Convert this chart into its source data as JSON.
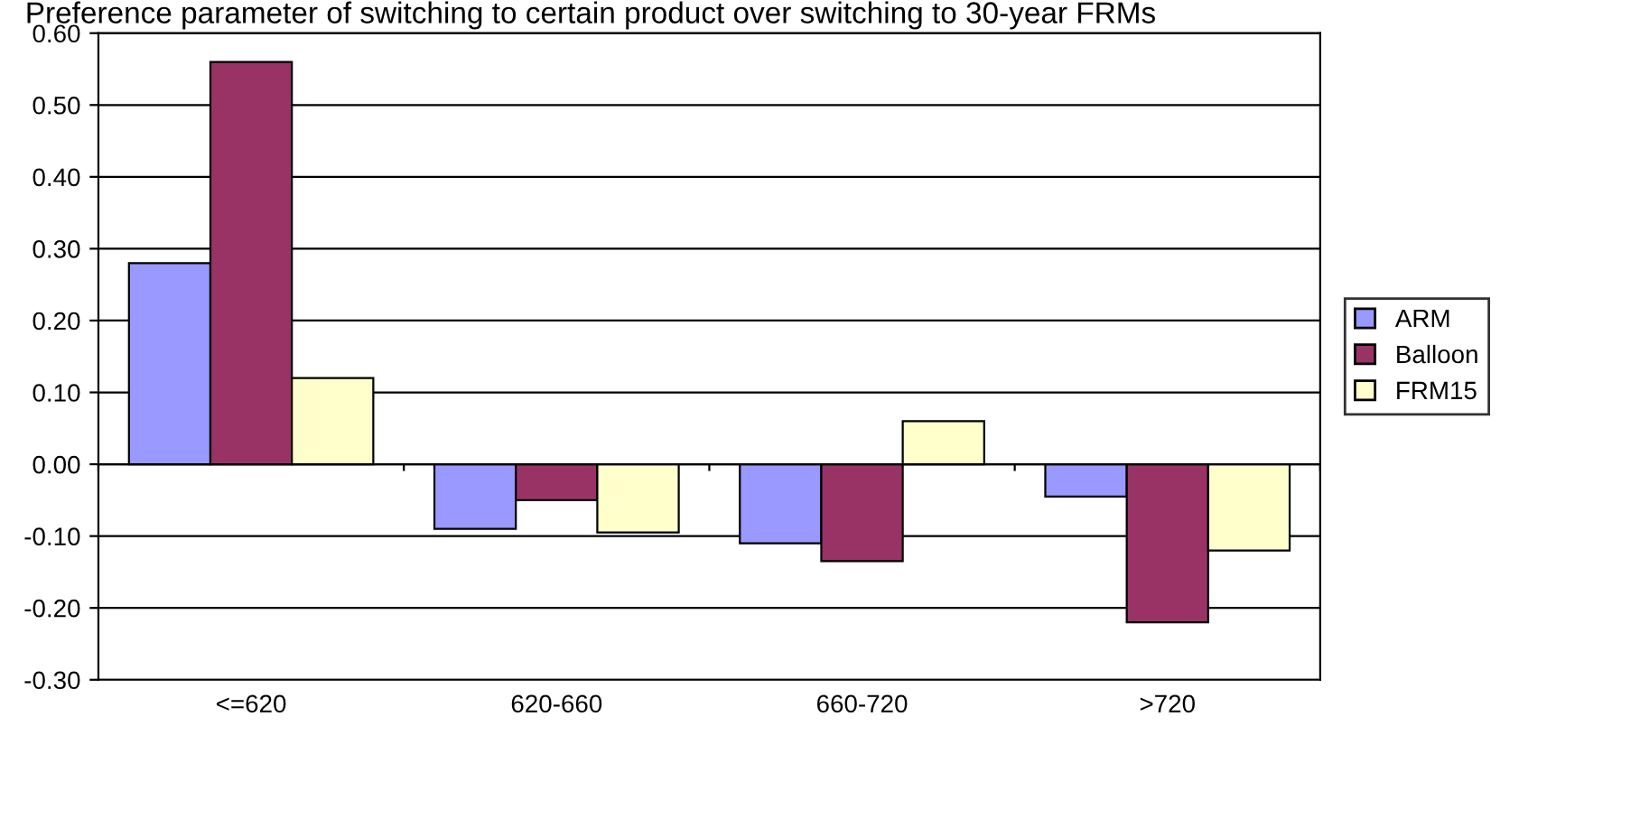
{
  "chart_data": {
    "type": "bar",
    "title": "Preference parameter of switching to certain product over switching to 30-year FRMs",
    "categories": [
      "<=620",
      "620-660",
      "660-720",
      ">720"
    ],
    "series": [
      {
        "name": "ARM",
        "color": "#9999ff",
        "values": [
          0.28,
          -0.09,
          -0.11,
          -0.045
        ]
      },
      {
        "name": "Balloon",
        "color": "#993366",
        "values": [
          0.56,
          -0.05,
          -0.135,
          -0.22
        ]
      },
      {
        "name": "FRM15",
        "color": "#ffffcc",
        "values": [
          0.12,
          -0.095,
          0.06,
          -0.12
        ]
      }
    ],
    "ylim": [
      -0.3,
      0.6
    ],
    "yticks": [
      {
        "value": -0.3,
        "label": "-0.30"
      },
      {
        "value": -0.2,
        "label": "-0.20"
      },
      {
        "value": -0.1,
        "label": "-0.10"
      },
      {
        "value": 0,
        "label": "0.00"
      },
      {
        "value": 0.1,
        "label": "0.10"
      },
      {
        "value": 0.2,
        "label": "0.20"
      },
      {
        "value": 0.3,
        "label": "0.30"
      },
      {
        "value": 0.4,
        "label": "0.40"
      },
      {
        "value": 0.5,
        "label": "0.50"
      },
      {
        "value": 0.6,
        "label": "0.60"
      }
    ],
    "grid": "y",
    "legend": "right"
  }
}
